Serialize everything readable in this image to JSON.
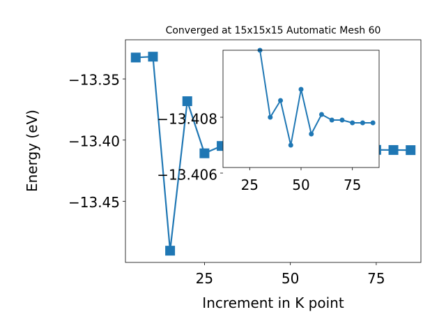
{
  "chart_data": [
    {
      "type": "line",
      "title": "Converged at 15x15x15 Automatic Mesh 60",
      "xlabel": "Increment in K point",
      "ylabel": "Energy (eV)",
      "xlim": [
        2,
        88
      ],
      "ylim": [
        -13.5,
        -13.318
      ],
      "xticks": [
        "25",
        "50",
        "75"
      ],
      "xtick_values": [
        25,
        50,
        75
      ],
      "yticks": [
        "−13.35",
        "−13.40",
        "−13.45"
      ],
      "ytick_values": [
        -13.35,
        -13.4,
        -13.45
      ],
      "marker": "square",
      "color": "#1f77b4",
      "grid": false,
      "x": [
        5,
        10,
        15,
        20,
        25,
        30,
        35,
        40,
        45,
        50,
        55,
        60,
        65,
        70,
        75,
        80,
        85
      ],
      "y": [
        -13.3325,
        -13.3318,
        -13.4904,
        -13.3682,
        -13.4108,
        -13.4048,
        -13.408,
        -13.4058,
        -13.4088,
        -13.4072,
        -13.4082,
        -13.4075,
        -13.4079,
        -13.4077,
        -13.408,
        -13.4081,
        -13.4082
      ]
    },
    {
      "type": "line",
      "role": "inset",
      "xlim": [
        12,
        88
      ],
      "ylim": [
        -13.4062,
        -13.4104
      ],
      "xticks": [
        "25",
        "50",
        "75"
      ],
      "xtick_values": [
        25,
        50,
        75
      ],
      "yticks": [
        "−13.408",
        "−13.406"
      ],
      "ytick_values": [
        -13.408,
        -13.406
      ],
      "marker": "circle",
      "color": "#1f77b4",
      "grid": false,
      "x": [
        30,
        35,
        40,
        45,
        50,
        55,
        60,
        65,
        70,
        75,
        80,
        85
      ],
      "y": [
        -13.4104,
        -13.408,
        -13.4086,
        -13.407,
        -13.409,
        -13.4074,
        -13.4081,
        -13.4079,
        -13.4079,
        -13.4078,
        -13.4078,
        -13.4078
      ]
    }
  ]
}
